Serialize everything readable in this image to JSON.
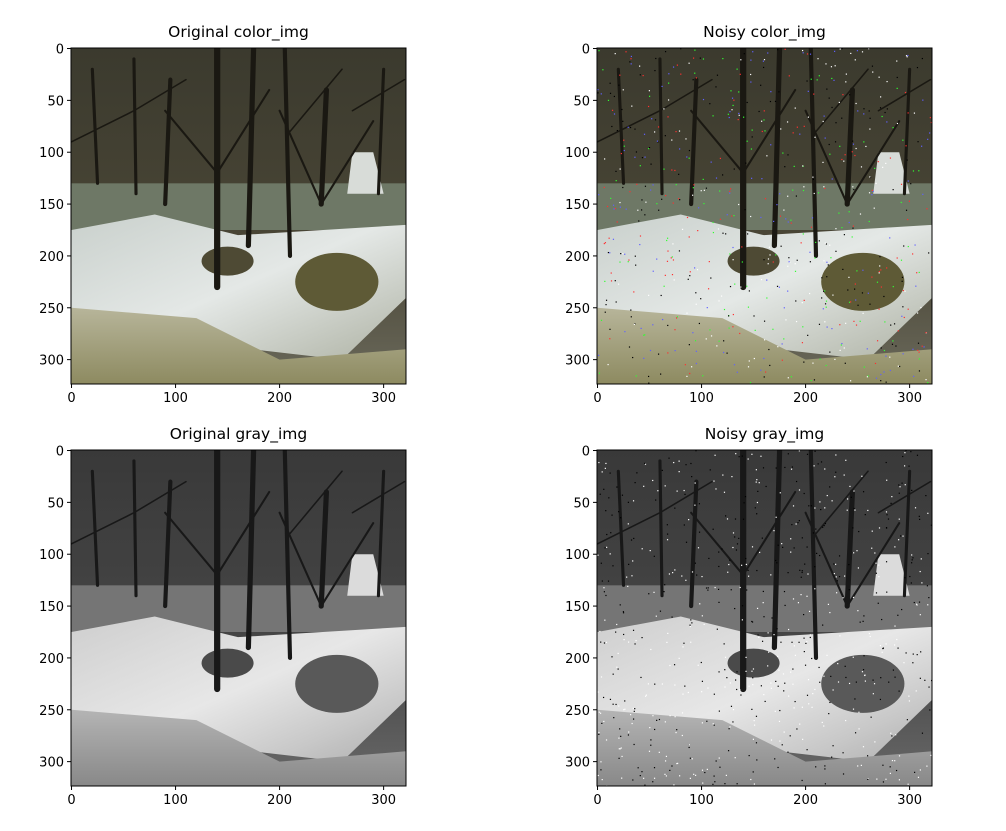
{
  "chart_data": [
    {
      "type": "image",
      "title": "Original color_img",
      "colormap": "color",
      "noise": false,
      "xlim": [
        -0.5,
        321.5
      ],
      "ylim": [
        323.5,
        -0.5
      ],
      "xticks": [
        0,
        100,
        200,
        300
      ],
      "yticks": [
        0,
        50,
        100,
        150,
        200,
        250,
        300
      ]
    },
    {
      "type": "image",
      "title": "Noisy color_img",
      "colormap": "color",
      "noise": true,
      "xlim": [
        -0.5,
        321.5
      ],
      "ylim": [
        323.5,
        -0.5
      ],
      "xticks": [
        0,
        100,
        200,
        300
      ],
      "yticks": [
        0,
        50,
        100,
        150,
        200,
        250,
        300
      ]
    },
    {
      "type": "image",
      "title": "Original gray_img",
      "colormap": "gray",
      "noise": false,
      "xlim": [
        -0.5,
        321.5
      ],
      "ylim": [
        323.5,
        -0.5
      ],
      "xticks": [
        0,
        100,
        200,
        300
      ],
      "yticks": [
        0,
        50,
        100,
        150,
        200,
        250,
        300
      ]
    },
    {
      "type": "image",
      "title": "Noisy gray_img",
      "colormap": "gray",
      "noise": true,
      "xlim": [
        -0.5,
        321.5
      ],
      "ylim": [
        323.5,
        -0.5
      ],
      "xticks": [
        0,
        100,
        200,
        300
      ],
      "yticks": [
        0,
        50,
        100,
        150,
        200,
        250,
        300
      ]
    }
  ]
}
